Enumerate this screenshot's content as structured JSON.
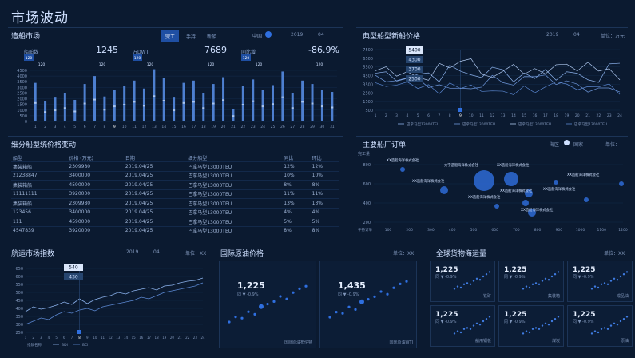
{
  "page": {
    "title": "市场波动"
  },
  "shipbuilding": {
    "title": "造船市场",
    "tabs": [
      "完工",
      "手持",
      "新船"
    ],
    "active_tab": "完工",
    "filter_label": "中国",
    "year": "2019",
    "month": "04",
    "stats": [
      {
        "label": "船舶数",
        "value": "1245"
      },
      {
        "label": "万DWT",
        "value": "7689"
      },
      {
        "label": "同比增",
        "value": "-86.9%"
      }
    ],
    "marker": "120",
    "ticks_y": [
      "4500",
      "4000",
      "3500",
      "3000",
      "2500",
      "2000",
      "1500",
      "1000",
      "500",
      "0"
    ],
    "ticks_x": [
      "1",
      "2",
      "3",
      "4",
      "5",
      "6",
      "7",
      "8",
      "9",
      "10",
      "11",
      "12",
      "13",
      "14",
      "15",
      "16",
      "17",
      "18",
      "19",
      "20",
      "21",
      "22",
      "23",
      "24",
      "25",
      "26",
      "27",
      "28",
      "29",
      "30",
      "31"
    ]
  },
  "newbuild_price": {
    "title": "典型船型新船价格",
    "year": "2019",
    "month": "04",
    "unit": "单位：万元",
    "tooltips": [
      "5400",
      "4300",
      "3700",
      "2500"
    ],
    "ticks_y": [
      "7500",
      "6500",
      "5500",
      "4500",
      "3500",
      "2500",
      "1500",
      "500"
    ],
    "ticks_x": [
      "1",
      "2",
      "3",
      "4",
      "5",
      "6",
      "7",
      "8",
      "9",
      "10",
      "11",
      "12",
      "13",
      "14",
      "15",
      "16",
      "17",
      "18",
      "19",
      "20",
      "21",
      "22",
      "23",
      "24"
    ],
    "legend": [
      "巴拿马型13000TEU",
      "巴拿马型13000TEU",
      "巴拿马型13000TEU",
      "巴拿马型13000TEU"
    ]
  },
  "segment_price": {
    "title": "细分船型统价格变动",
    "columns": [
      "船型",
      "价格 (万元)",
      "日期",
      "细分船型",
      "同比",
      "环比"
    ],
    "rows": [
      [
        "集装箱船",
        "2309980",
        "2019.04/25",
        "巴拿马型13000TEU",
        "12%",
        "12%"
      ],
      [
        "21238847",
        "3400000",
        "2019.04/25",
        "巴拿马型13000TEU",
        "10%",
        "10%"
      ],
      [
        "集装箱船",
        "4590000",
        "2019.04/25",
        "巴拿马型13000TEU",
        "8%",
        "8%"
      ],
      [
        "11111111",
        "3920000",
        "2019.04/25",
        "巴拿马型13000TEU",
        "11%",
        "11%"
      ],
      [
        "集装箱船",
        "2309980",
        "2019.04/25",
        "巴拿马型13000TEU",
        "13%",
        "13%"
      ],
      [
        "123456",
        "3400000",
        "2019.04/25",
        "巴拿马型13000TEU",
        "4%",
        "4%"
      ],
      [
        "111",
        "4590000",
        "2019.04/25",
        "巴拿马型13000TEU",
        "5%",
        "5%"
      ],
      [
        "4547839",
        "3920000",
        "2019.04/25",
        "巴拿马型13000TEU",
        "8%",
        "8%"
      ]
    ]
  },
  "shipyard_orders": {
    "title": "主要船厂订单",
    "filter": "海区",
    "toggle": "国家",
    "unit": "单位：",
    "y_label": "完工量",
    "x_label": "手持订单",
    "ticks_y": [
      "800",
      "600",
      "400",
      "200"
    ],
    "ticks_x": [
      "100",
      "200",
      "300",
      "400",
      "500",
      "600",
      "700",
      "800",
      "900",
      "1000",
      "1100",
      "1200"
    ],
    "bubble_label": "XX造船海洋株式会社",
    "bubble_label_2": "大宇造船海洋株式会社"
  },
  "shipping_index": {
    "title": "航运市场指数",
    "year": "2019",
    "month": "04",
    "unit": "单位：XX",
    "tooltips": [
      "540",
      "430"
    ],
    "ticks_y": [
      "650",
      "600",
      "550",
      "500",
      "450",
      "400",
      "350",
      "300",
      "250"
    ],
    "ticks_x": [
      "1",
      "2",
      "3",
      "4",
      "5",
      "6",
      "7",
      "8",
      "9",
      "10",
      "11",
      "12",
      "13",
      "14",
      "15",
      "16",
      "17",
      "18",
      "19",
      "20",
      "21",
      "22",
      "23",
      "24"
    ],
    "legend": [
      "指数名称",
      "BDI",
      "BCI"
    ]
  },
  "oil_price": {
    "title": "国际原油价格",
    "unit": "单位：XX",
    "cards": [
      {
        "value": "1,225",
        "sub": "同 ▼ -0.9%",
        "name": "国际原油布伦特"
      },
      {
        "value": "1,435",
        "sub": "同 ▼ -0.9%",
        "name": "国际原油WTI"
      }
    ]
  },
  "cargo": {
    "title": "全球货物海运量",
    "unit": "单位：XX",
    "cards": [
      {
        "value": "1,225",
        "sub": "同 ▼ -0.9%",
        "name": "铁矿"
      },
      {
        "value": "1,225",
        "sub": "同 ▼ -0.9%",
        "name": "集装箱"
      },
      {
        "value": "1,225",
        "sub": "同 ▼ -0.9%",
        "name": "成品油"
      },
      {
        "value": "1,225",
        "sub": "同 ▼ -0.9%",
        "name": "船用钢板"
      },
      {
        "value": "1,225",
        "sub": "同 ▼ -0.9%",
        "name": "煤炭"
      },
      {
        "value": "1,225",
        "sub": "同 ▼ -0.9%",
        "name": "原油"
      }
    ]
  },
  "colors": {
    "bg": "#0b1a30",
    "accent": "#2f6fe0",
    "line": "#8ab0ea",
    "text": "#cfe0ff"
  }
}
